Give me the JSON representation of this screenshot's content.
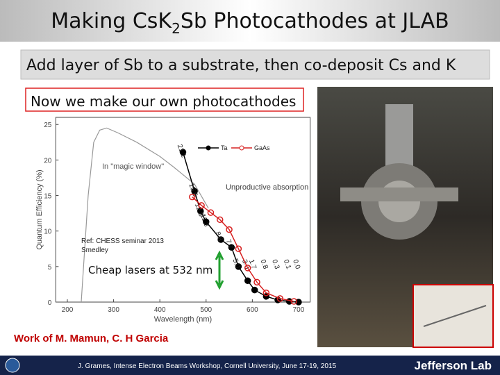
{
  "title_parts": [
    "Making CsK",
    "2",
    "Sb Photocathodes at JLAB"
  ],
  "banner": "Add layer of Sb to a substrate, then co-deposit Cs and K",
  "callout": "Now we make our own photocathodes",
  "chart_data": {
    "type": "line",
    "xlabel": "Wavelength (nm)",
    "ylabel": "Quantum Efficiency (%)",
    "xlim": [
      175,
      725
    ],
    "xticks": [
      200,
      300,
      400,
      500,
      600,
      700
    ],
    "ylim": [
      0,
      26
    ],
    "yticks": [
      0,
      5,
      10,
      15,
      20,
      25
    ],
    "series": [
      {
        "name": "Ta",
        "color": "#000000",
        "x": [
          450,
          475,
          488,
          500,
          532,
          555,
          570,
          590,
          605,
          630,
          655,
          680,
          700
        ],
        "values": [
          21.1,
          15.6,
          12.8,
          11.3,
          8.8,
          7.7,
          5.0,
          3.0,
          1.7,
          0.8,
          0.3,
          0.1,
          0.0
        ],
        "value_labels": [
          "21.1",
          "15.6",
          "12.8",
          "11.3",
          "8.8",
          "7.7",
          "5.0",
          "3.0",
          "1.7",
          "0.8",
          "0.3",
          "0.1",
          "0.0"
        ]
      },
      {
        "name": "GaAs",
        "color": "#d62020",
        "x": [
          470,
          490,
          510,
          530,
          550,
          570,
          590,
          610,
          630,
          660,
          690
        ],
        "values": [
          14.8,
          13.6,
          12.6,
          11.6,
          10.2,
          7.5,
          4.8,
          2.8,
          1.3,
          0.5,
          0.1
        ]
      }
    ],
    "window_curve": {
      "label": "In \"magic window\"",
      "color": "#999999",
      "x": [
        230,
        245,
        257,
        270,
        285,
        310,
        350,
        400,
        430,
        475,
        505
      ],
      "values": [
        0,
        15,
        22.5,
        24.2,
        24.5,
        23.8,
        22.5,
        20.5,
        19,
        16.6,
        13.2
      ]
    },
    "annotations": [
      "Unproductive absorption",
      "Ref: CHESS seminar 2013",
      "Smedley",
      "Cheap lasers at 532 nm"
    ]
  },
  "credit": "Work of M. Mamun, C. H Garcia",
  "footer": "J. Grames, Intense Electron Beams Workshop, Cornell University, June 17-19, 2015",
  "logo": "Jefferson Lab"
}
